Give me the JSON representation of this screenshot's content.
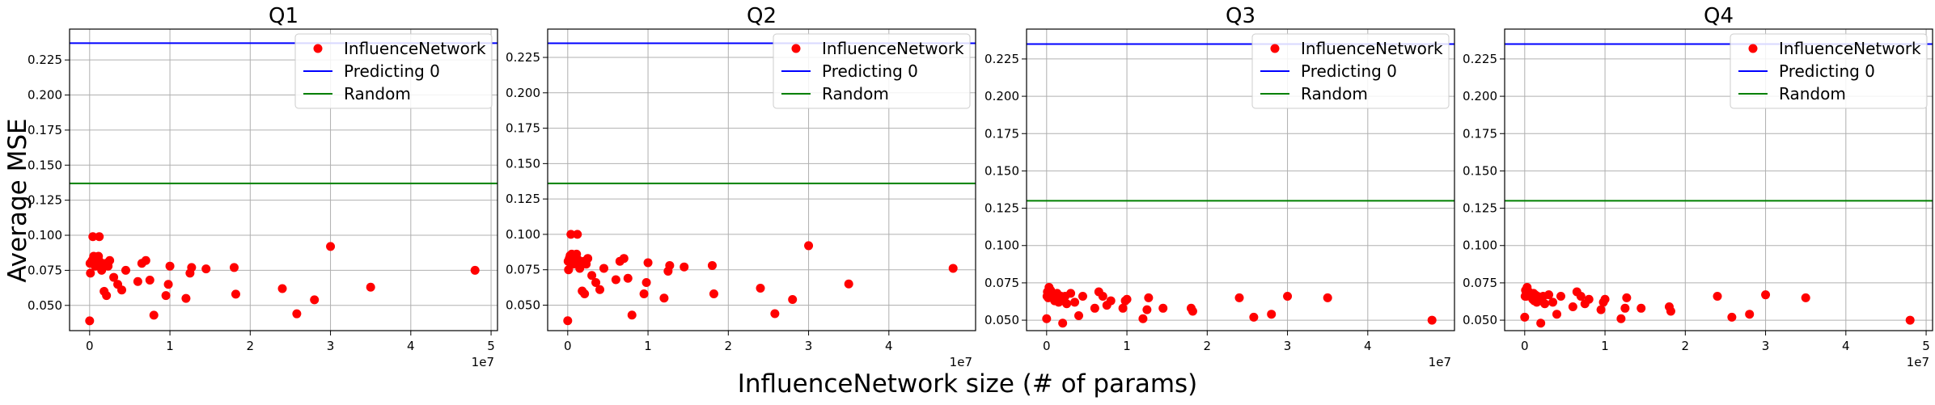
{
  "figure": {
    "ylabel": "Average MSE",
    "xlabel": "InfluenceNetwork size (# of params)"
  },
  "colors": {
    "points": "#ff0000",
    "predicting0": "#0000ff",
    "random": "#008000",
    "grid": "#b0b0b0",
    "axes": "#000000"
  },
  "chart_data": [
    {
      "type": "scatter",
      "title": "Q1",
      "xlabel": "InfluenceNetwork size (# of params)",
      "ylabel": "Average MSE",
      "x_offset_label": "1e7",
      "xlim": [
        -2500000,
        50800000
      ],
      "ylim": [
        0.032,
        0.247
      ],
      "xticks": [
        0,
        10000000,
        20000000,
        30000000,
        40000000,
        50000000
      ],
      "xtick_labels": [
        "0",
        "1",
        "2",
        "3",
        "4",
        "5"
      ],
      "yticks": [
        0.05,
        0.075,
        0.1,
        0.125,
        0.15,
        0.175,
        0.2,
        0.225
      ],
      "ytick_labels": [
        "0.050",
        "0.075",
        "0.100",
        "0.125",
        "0.150",
        "0.175",
        "0.200",
        "0.225"
      ],
      "grid": true,
      "legend_position": "top-right",
      "legend": [
        "InfluenceNetwork",
        "Predicting 0",
        "Random"
      ],
      "hlines": [
        {
          "name": "Predicting 0",
          "y": 0.237
        },
        {
          "name": "Random",
          "y": 0.137
        }
      ],
      "series": [
        {
          "name": "InfluenceNetwork",
          "points": [
            [
              0,
              0.039
            ],
            [
              50000,
              0.08
            ],
            [
              100000,
              0.073
            ],
            [
              200000,
              0.08
            ],
            [
              300000,
              0.082
            ],
            [
              400000,
              0.099
            ],
            [
              500000,
              0.085
            ],
            [
              700000,
              0.078
            ],
            [
              900000,
              0.083
            ],
            [
              1000000,
              0.079
            ],
            [
              1100000,
              0.085
            ],
            [
              1200000,
              0.099
            ],
            [
              1300000,
              0.081
            ],
            [
              1500000,
              0.075
            ],
            [
              1600000,
              0.078
            ],
            [
              1800000,
              0.06
            ],
            [
              2000000,
              0.08
            ],
            [
              2100000,
              0.057
            ],
            [
              2300000,
              0.078
            ],
            [
              2500000,
              0.082
            ],
            [
              3000000,
              0.07
            ],
            [
              3500000,
              0.065
            ],
            [
              4000000,
              0.061
            ],
            [
              4500000,
              0.075
            ],
            [
              6000000,
              0.067
            ],
            [
              6500000,
              0.08
            ],
            [
              7000000,
              0.082
            ],
            [
              7500000,
              0.068
            ],
            [
              8000000,
              0.043
            ],
            [
              9500000,
              0.057
            ],
            [
              9800000,
              0.065
            ],
            [
              10000000,
              0.078
            ],
            [
              12000000,
              0.055
            ],
            [
              12500000,
              0.073
            ],
            [
              12700000,
              0.077
            ],
            [
              14500000,
              0.076
            ],
            [
              18000000,
              0.077
            ],
            [
              18200000,
              0.058
            ],
            [
              24000000,
              0.062
            ],
            [
              25800000,
              0.044
            ],
            [
              28000000,
              0.054
            ],
            [
              30000000,
              0.092
            ],
            [
              35000000,
              0.063
            ],
            [
              48000000,
              0.075
            ]
          ]
        }
      ]
    },
    {
      "type": "scatter",
      "title": "Q2",
      "xlabel": "InfluenceNetwork size (# of params)",
      "ylabel": "Average MSE",
      "x_offset_label": "1e7",
      "xlim": [
        -2500000,
        50800000
      ],
      "ylim": [
        0.032,
        0.245
      ],
      "xticks": [
        0,
        10000000,
        20000000,
        30000000,
        40000000
      ],
      "xtick_labels": [
        "0",
        "1",
        "2",
        "3",
        "4"
      ],
      "yticks": [
        0.05,
        0.075,
        0.1,
        0.125,
        0.15,
        0.175,
        0.2,
        0.225
      ],
      "ytick_labels": [
        "0.050",
        "0.075",
        "0.100",
        "0.125",
        "0.150",
        "0.175",
        "0.200",
        "0.225"
      ],
      "grid": true,
      "legend_position": "top-right",
      "legend": [
        "InfluenceNetwork",
        "Predicting 0",
        "Random"
      ],
      "hlines": [
        {
          "name": "Predicting 0",
          "y": 0.235
        },
        {
          "name": "Random",
          "y": 0.136
        }
      ],
      "series": [
        {
          "name": "InfluenceNetwork",
          "points": [
            [
              0,
              0.039
            ],
            [
              50000,
              0.081
            ],
            [
              100000,
              0.075
            ],
            [
              200000,
              0.083
            ],
            [
              300000,
              0.085
            ],
            [
              400000,
              0.1
            ],
            [
              500000,
              0.086
            ],
            [
              700000,
              0.079
            ],
            [
              900000,
              0.084
            ],
            [
              1000000,
              0.08
            ],
            [
              1100000,
              0.086
            ],
            [
              1200000,
              0.1
            ],
            [
              1300000,
              0.082
            ],
            [
              1500000,
              0.076
            ],
            [
              1600000,
              0.079
            ],
            [
              1800000,
              0.06
            ],
            [
              2000000,
              0.081
            ],
            [
              2100000,
              0.058
            ],
            [
              2300000,
              0.079
            ],
            [
              2500000,
              0.083
            ],
            [
              3000000,
              0.071
            ],
            [
              3500000,
              0.066
            ],
            [
              4000000,
              0.061
            ],
            [
              4500000,
              0.076
            ],
            [
              6000000,
              0.068
            ],
            [
              6500000,
              0.081
            ],
            [
              7000000,
              0.083
            ],
            [
              7500000,
              0.069
            ],
            [
              8000000,
              0.043
            ],
            [
              9500000,
              0.058
            ],
            [
              9800000,
              0.066
            ],
            [
              10000000,
              0.08
            ],
            [
              12000000,
              0.055
            ],
            [
              12500000,
              0.074
            ],
            [
              12700000,
              0.078
            ],
            [
              14500000,
              0.077
            ],
            [
              18000000,
              0.078
            ],
            [
              18200000,
              0.058
            ],
            [
              24000000,
              0.062
            ],
            [
              25800000,
              0.044
            ],
            [
              28000000,
              0.054
            ],
            [
              30000000,
              0.092
            ],
            [
              35000000,
              0.065
            ],
            [
              48000000,
              0.076
            ]
          ]
        }
      ]
    },
    {
      "type": "scatter",
      "title": "Q3",
      "xlabel": "InfluenceNetwork size (# of params)",
      "ylabel": "Average MSE",
      "x_offset_label": "1e7",
      "xlim": [
        -2500000,
        50800000
      ],
      "ylim": [
        0.043,
        0.245
      ],
      "xticks": [
        0,
        10000000,
        20000000,
        30000000,
        40000000
      ],
      "xtick_labels": [
        "0",
        "1",
        "2",
        "3",
        "4"
      ],
      "yticks": [
        0.05,
        0.075,
        0.1,
        0.125,
        0.15,
        0.175,
        0.2,
        0.225
      ],
      "ytick_labels": [
        "0.050",
        "0.075",
        "0.100",
        "0.125",
        "0.150",
        "0.175",
        "0.200",
        "0.225"
      ],
      "grid": true,
      "legend_position": "top-right",
      "legend": [
        "InfluenceNetwork",
        "Predicting 0",
        "Random"
      ],
      "hlines": [
        {
          "name": "Predicting 0",
          "y": 0.235
        },
        {
          "name": "Random",
          "y": 0.13
        }
      ],
      "series": [
        {
          "name": "InfluenceNetwork",
          "points": [
            [
              0,
              0.051
            ],
            [
              50000,
              0.066
            ],
            [
              100000,
              0.069
            ],
            [
              200000,
              0.065
            ],
            [
              300000,
              0.072
            ],
            [
              400000,
              0.066
            ],
            [
              500000,
              0.07
            ],
            [
              700000,
              0.068
            ],
            [
              900000,
              0.065
            ],
            [
              1000000,
              0.063
            ],
            [
              1100000,
              0.067
            ],
            [
              1200000,
              0.064
            ],
            [
              1300000,
              0.068
            ],
            [
              1500000,
              0.062
            ],
            [
              1600000,
              0.065
            ],
            [
              1800000,
              0.066
            ],
            [
              2000000,
              0.048
            ],
            [
              2100000,
              0.063
            ],
            [
              2300000,
              0.066
            ],
            [
              2500000,
              0.061
            ],
            [
              3000000,
              0.068
            ],
            [
              3500000,
              0.062
            ],
            [
              4000000,
              0.053
            ],
            [
              4500000,
              0.066
            ],
            [
              6000000,
              0.058
            ],
            [
              6500000,
              0.069
            ],
            [
              7000000,
              0.066
            ],
            [
              7500000,
              0.06
            ],
            [
              8000000,
              0.063
            ],
            [
              9500000,
              0.058
            ],
            [
              9800000,
              0.063
            ],
            [
              10000000,
              0.064
            ],
            [
              12000000,
              0.051
            ],
            [
              12500000,
              0.057
            ],
            [
              12700000,
              0.065
            ],
            [
              14500000,
              0.058
            ],
            [
              18000000,
              0.058
            ],
            [
              18200000,
              0.056
            ],
            [
              24000000,
              0.065
            ],
            [
              25800000,
              0.052
            ],
            [
              28000000,
              0.054
            ],
            [
              30000000,
              0.066
            ],
            [
              35000000,
              0.065
            ],
            [
              48000000,
              0.05
            ]
          ]
        }
      ]
    },
    {
      "type": "scatter",
      "title": "Q4",
      "xlabel": "InfluenceNetwork size (# of params)",
      "ylabel": "Average MSE",
      "x_offset_label": "1e7",
      "xlim": [
        -2500000,
        50800000
      ],
      "ylim": [
        0.043,
        0.245
      ],
      "xticks": [
        0,
        10000000,
        20000000,
        30000000,
        40000000,
        50000000
      ],
      "xtick_labels": [
        "0",
        "1",
        "2",
        "3",
        "4",
        "5"
      ],
      "yticks": [
        0.05,
        0.075,
        0.1,
        0.125,
        0.15,
        0.175,
        0.2,
        0.225
      ],
      "ytick_labels": [
        "0.050",
        "0.075",
        "0.100",
        "0.125",
        "0.150",
        "0.175",
        "0.200",
        "0.225"
      ],
      "grid": true,
      "legend_position": "top-right",
      "legend": [
        "InfluenceNetwork",
        "Predicting 0",
        "Random"
      ],
      "hlines": [
        {
          "name": "Predicting 0",
          "y": 0.235
        },
        {
          "name": "Random",
          "y": 0.13
        }
      ],
      "series": [
        {
          "name": "InfluenceNetwork",
          "points": [
            [
              0,
              0.052
            ],
            [
              50000,
              0.066
            ],
            [
              100000,
              0.07
            ],
            [
              200000,
              0.066
            ],
            [
              300000,
              0.072
            ],
            [
              400000,
              0.067
            ],
            [
              500000,
              0.069
            ],
            [
              700000,
              0.068
            ],
            [
              900000,
              0.066
            ],
            [
              1000000,
              0.064
            ],
            [
              1100000,
              0.068
            ],
            [
              1200000,
              0.063
            ],
            [
              1300000,
              0.067
            ],
            [
              1500000,
              0.062
            ],
            [
              1600000,
              0.066
            ],
            [
              1800000,
              0.065
            ],
            [
              2000000,
              0.048
            ],
            [
              2100000,
              0.063
            ],
            [
              2300000,
              0.066
            ],
            [
              2500000,
              0.061
            ],
            [
              3000000,
              0.067
            ],
            [
              3500000,
              0.062
            ],
            [
              4000000,
              0.054
            ],
            [
              4500000,
              0.066
            ],
            [
              6000000,
              0.059
            ],
            [
              6500000,
              0.069
            ],
            [
              7000000,
              0.066
            ],
            [
              7500000,
              0.061
            ],
            [
              8000000,
              0.064
            ],
            [
              9500000,
              0.057
            ],
            [
              9800000,
              0.062
            ],
            [
              10000000,
              0.064
            ],
            [
              12000000,
              0.051
            ],
            [
              12500000,
              0.058
            ],
            [
              12700000,
              0.065
            ],
            [
              14500000,
              0.058
            ],
            [
              18000000,
              0.059
            ],
            [
              18200000,
              0.056
            ],
            [
              24000000,
              0.066
            ],
            [
              25800000,
              0.052
            ],
            [
              28000000,
              0.054
            ],
            [
              30000000,
              0.067
            ],
            [
              35000000,
              0.065
            ],
            [
              48000000,
              0.05
            ]
          ]
        }
      ]
    }
  ]
}
